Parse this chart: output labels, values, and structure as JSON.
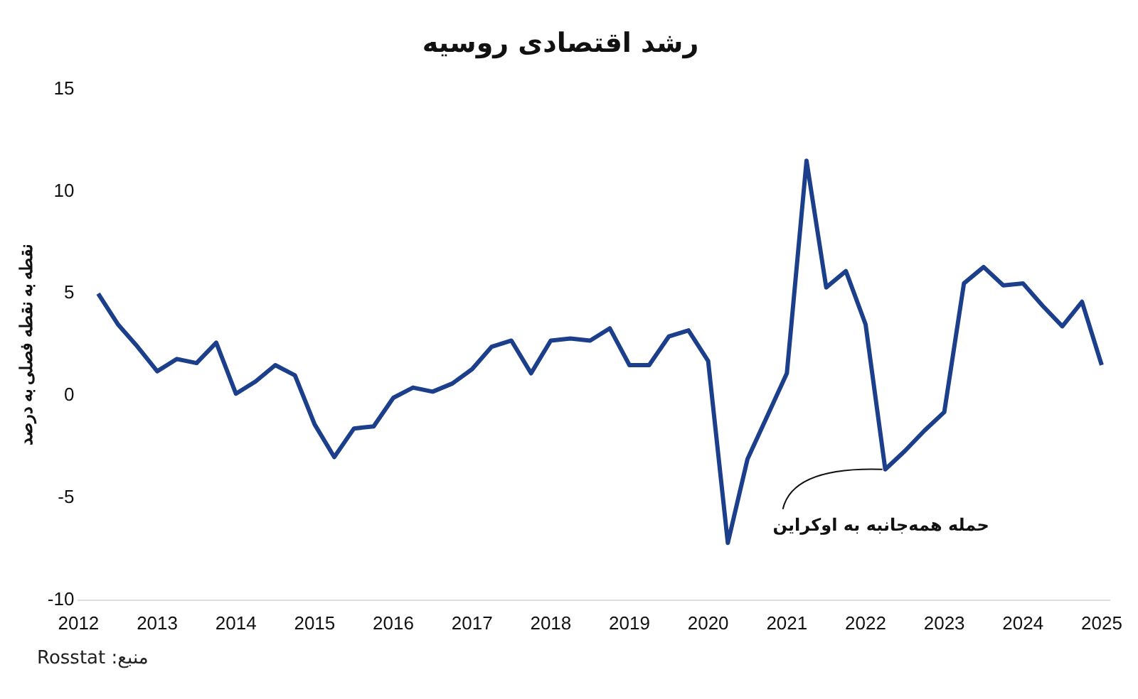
{
  "chart_data": {
    "type": "line",
    "title": "رشد اقتصادی روسیه",
    "ylabel": "نقطه به نقطه فصلی به درصد",
    "x": [
      2012.25,
      2012.5,
      2012.75,
      2013,
      2013.25,
      2013.5,
      2013.75,
      2014,
      2014.25,
      2014.5,
      2014.75,
      2015,
      2015.25,
      2015.5,
      2015.75,
      2016,
      2016.25,
      2016.5,
      2016.75,
      2017,
      2017.25,
      2017.5,
      2017.75,
      2018,
      2018.25,
      2018.5,
      2018.75,
      2019,
      2019.25,
      2019.5,
      2019.75,
      2020,
      2020.25,
      2020.5,
      2020.75,
      2021,
      2021.25,
      2021.5,
      2021.75,
      2022,
      2022.25,
      2022.5,
      2022.75,
      2023,
      2023.25,
      2023.5,
      2023.75,
      2024,
      2024.25,
      2024.5,
      2024.75,
      2025
    ],
    "series": [
      {
        "color": "#1c3f8c",
        "values": [
          5.0,
          3.5,
          2.4,
          1.2,
          1.8,
          1.6,
          2.6,
          0.1,
          0.7,
          1.5,
          1.0,
          -1.4,
          -3.0,
          -1.6,
          -1.5,
          -0.1,
          0.4,
          0.2,
          0.6,
          1.3,
          2.4,
          2.7,
          1.1,
          2.7,
          2.8,
          2.7,
          3.3,
          1.5,
          1.5,
          2.9,
          3.2,
          1.7,
          -7.2,
          -3.1,
          -1.0,
          1.1,
          11.5,
          5.3,
          6.1,
          3.5,
          -3.6,
          -2.7,
          -1.7,
          -0.8,
          5.5,
          6.3,
          5.4,
          5.5,
          4.4,
          3.4,
          4.6,
          1.5
        ]
      }
    ],
    "xlim": [
      2012,
      2025.1
    ],
    "xticks": [
      2012,
      2013,
      2014,
      2015,
      2016,
      2017,
      2018,
      2019,
      2020,
      2021,
      2022,
      2023,
      2024,
      2025
    ],
    "ylim": [
      -10,
      15
    ],
    "yticks": [
      -10,
      -5,
      0,
      5,
      10,
      15
    ],
    "grid": false,
    "legend": false,
    "marker": "none",
    "line_style": "solid",
    "annotations": [
      {
        "text": "حمله همه‌جانبه به اوکراین",
        "x": 2022.25,
        "y": -3.6
      },
      "منبع: Rosstat"
    ]
  }
}
